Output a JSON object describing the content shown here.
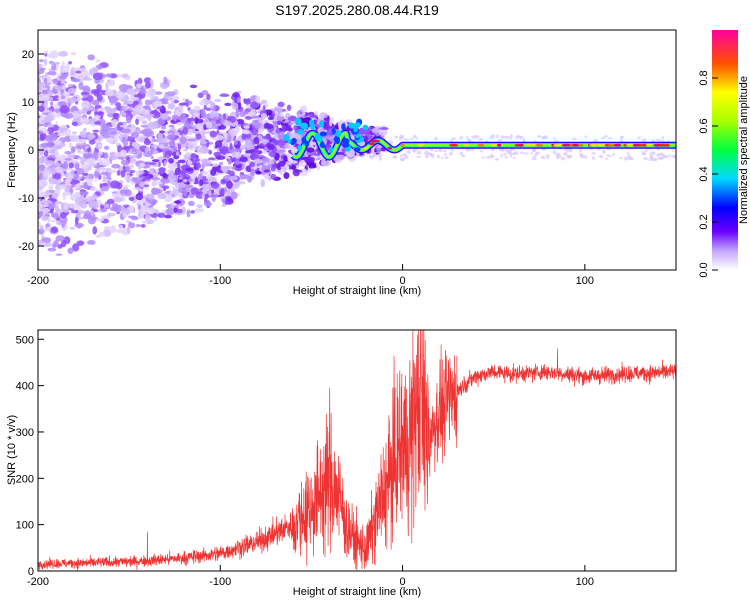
{
  "title": "S197.2025.280.08.44.R19",
  "chart_data": [
    {
      "type": "heatmap",
      "xlabel": "Height of straight line (km)",
      "ylabel": "Frequency (Hz)",
      "xlim": [
        -200,
        150
      ],
      "ylim": [
        -25,
        25
      ],
      "x_ticks": [
        "-200",
        "-100",
        "0",
        "100"
      ],
      "y_ticks": [
        "-20",
        "-10",
        "0",
        "10",
        "20"
      ],
      "colorbar": {
        "label": "Normalized spectral amplitude",
        "range": [
          0,
          1
        ],
        "ticks": [
          "0.0",
          "0.2",
          "0.4",
          "0.6",
          "0.8"
        ]
      },
      "features": {
        "carrier_line_start_km": -60,
        "carrier_line_end_km": 150,
        "carrier_freq_hz_at_start": 1,
        "carrier_freq_hz_at_end": 1,
        "noise_region_km": [
          -200,
          -20
        ],
        "noise_spread_hz_at_left": 24,
        "noise_spread_hz_at_right": 3
      }
    },
    {
      "type": "line",
      "xlabel": "Height of straight line (km)",
      "ylabel": "SNR (10 * v/v)",
      "xlim": [
        -200,
        150
      ],
      "ylim": [
        0,
        520
      ],
      "x_ticks": [
        "-200",
        "-100",
        "0",
        "100"
      ],
      "y_ticks": [
        "0",
        "100",
        "200",
        "300",
        "400",
        "500"
      ],
      "color": "#ee3333",
      "series": [
        {
          "name": "SNR",
          "x": [
            -200,
            -180,
            -160,
            -140,
            -120,
            -100,
            -90,
            -80,
            -70,
            -60,
            -50,
            -45,
            -40,
            -35,
            -30,
            -25,
            -20,
            -15,
            -10,
            -5,
            0,
            3,
            6,
            9,
            12,
            15,
            20,
            25,
            30,
            35,
            40,
            50,
            60,
            80,
            100,
            120,
            150
          ],
          "values": [
            15,
            17,
            19,
            22,
            28,
            38,
            50,
            62,
            80,
            100,
            140,
            170,
            200,
            160,
            90,
            60,
            45,
            110,
            170,
            230,
            280,
            260,
            320,
            350,
            330,
            300,
            340,
            370,
            390,
            405,
            420,
            430,
            425,
            430,
            420,
            425,
            430
          ]
        }
      ],
      "spikes": [
        {
          "x": -40,
          "y": 395
        },
        {
          "x": 10,
          "y": 515
        },
        {
          "x": 4,
          "y": 455
        },
        {
          "x": 85,
          "y": 480
        },
        {
          "x": -140,
          "y": 85
        }
      ]
    }
  ]
}
